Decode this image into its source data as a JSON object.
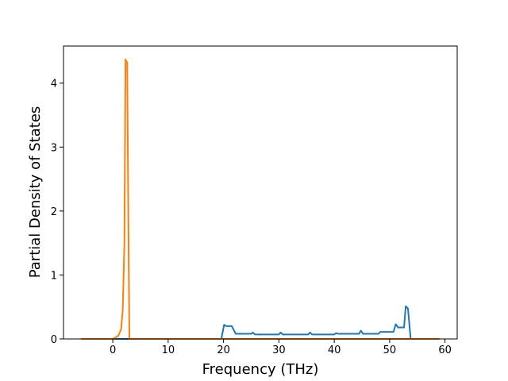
{
  "chart_data": {
    "type": "line",
    "x_label": "Frequency (THz)",
    "y_label": "Partial Density of States",
    "xlim": [
      -8.9,
      62.2
    ],
    "ylim": [
      0,
      4.58
    ],
    "xticks": [
      0,
      10,
      20,
      30,
      40,
      50,
      60
    ],
    "yticks": [
      0,
      1,
      2,
      3,
      4
    ],
    "series": [
      {
        "color": "#1f77b4",
        "x": [
          -5.7,
          19.6,
          20.1,
          20.5,
          21.5,
          22.2,
          25,
          25.3,
          25.7,
          30,
          30.3,
          30.7,
          35.3,
          35.6,
          36,
          40,
          40.3,
          40.7,
          44.5,
          44.8,
          45.2,
          48,
          48.3,
          50.7,
          51.1,
          51.5,
          52.6,
          52.9,
          53.3,
          53.8,
          59
        ],
        "values": [
          0,
          0,
          0.22,
          0.2,
          0.2,
          0.08,
          0.08,
          0.1,
          0.07,
          0.07,
          0.1,
          0.07,
          0.07,
          0.1,
          0.07,
          0.07,
          0.09,
          0.08,
          0.08,
          0.13,
          0.08,
          0.08,
          0.11,
          0.11,
          0.23,
          0.18,
          0.18,
          0.51,
          0.48,
          0,
          0
        ]
      },
      {
        "color": "#ff7f0e",
        "x": [
          -5.7,
          0,
          1,
          1.5,
          1.8,
          2.1,
          2.3,
          2.6,
          2.8,
          3,
          59
        ],
        "values": [
          0,
          0,
          0.05,
          0.15,
          0.45,
          1.5,
          4.37,
          4.32,
          2,
          0,
          0
        ]
      }
    ]
  }
}
